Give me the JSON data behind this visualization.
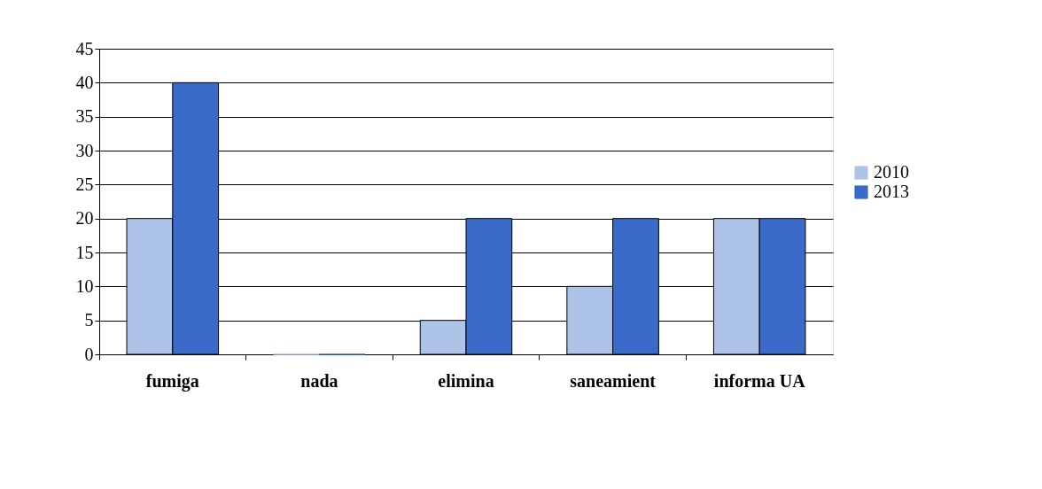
{
  "chart_data": {
    "type": "bar",
    "categories": [
      "fumiga",
      "nada",
      "elimina",
      "saneamient",
      "informa UA"
    ],
    "series": [
      {
        "name": "2010",
        "color": "#aec3e8",
        "values": [
          20,
          0,
          5,
          10,
          20
        ]
      },
      {
        "name": "2013",
        "color": "#3a6bc8",
        "values": [
          40,
          0,
          20,
          20,
          20
        ]
      }
    ],
    "ylim": [
      0,
      45
    ],
    "yticks": [
      0,
      5,
      10,
      15,
      20,
      25,
      30,
      35,
      40,
      45
    ],
    "grid": "y",
    "legend": "right"
  }
}
